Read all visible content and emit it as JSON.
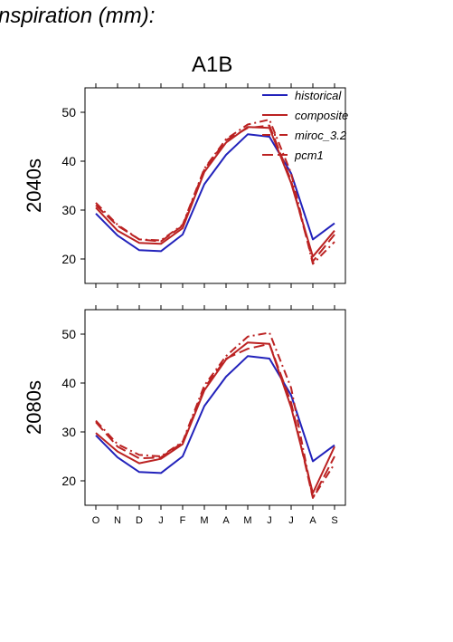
{
  "figure": {
    "title": "nspiration (mm):",
    "scenario": "A1B"
  },
  "colors": {
    "historical": "#2222bb",
    "future": "#bb2222",
    "axis": "#000000"
  },
  "chart_data": [
    {
      "type": "line",
      "row_label": "2040s",
      "categories": [
        "O",
        "N",
        "D",
        "J",
        "F",
        "M",
        "A",
        "M",
        "J",
        "J",
        "A",
        "S"
      ],
      "ylim": [
        15,
        55
      ],
      "yticks": [
        20,
        30,
        40,
        50
      ],
      "legend_placement": "top-right",
      "series": [
        {
          "name": "historical",
          "values": [
            29.3,
            24.8,
            21.8,
            21.6,
            25.0,
            35.3,
            41.3,
            45.5,
            45.0,
            37.5,
            24.0,
            27.3
          ]
        },
        {
          "name": "composite",
          "values": [
            30.5,
            25.8,
            23.3,
            23.1,
            26.3,
            37.8,
            43.8,
            47.0,
            46.8,
            35.5,
            20.5,
            25.8
          ]
        },
        {
          "name": "miroc_3.2",
          "values": [
            31.5,
            27.0,
            24.0,
            23.8,
            27.0,
            38.5,
            44.5,
            47.5,
            48.5,
            37.5,
            19.0,
            23.5
          ]
        },
        {
          "name": "pcm1",
          "values": [
            31.0,
            26.8,
            24.0,
            23.6,
            26.8,
            38.3,
            44.3,
            46.8,
            47.3,
            36.0,
            19.5,
            25.0
          ]
        }
      ]
    },
    {
      "type": "line",
      "row_label": "2080s",
      "categories": [
        "O",
        "N",
        "D",
        "J",
        "F",
        "M",
        "A",
        "M",
        "J",
        "J",
        "A",
        "S"
      ],
      "ylim": [
        15,
        55
      ],
      "yticks": [
        20,
        30,
        40,
        50
      ],
      "series": [
        {
          "name": "historical",
          "values": [
            29.3,
            24.8,
            21.8,
            21.6,
            25.0,
            35.3,
            41.3,
            45.5,
            45.0,
            37.5,
            24.0,
            27.3
          ]
        },
        {
          "name": "composite",
          "values": [
            29.8,
            26.0,
            23.6,
            24.5,
            27.5,
            38.5,
            44.8,
            48.3,
            48.0,
            35.0,
            17.5,
            27.0
          ]
        },
        {
          "name": "miroc_3.2",
          "values": [
            32.3,
            27.5,
            25.3,
            25.0,
            28.0,
            39.5,
            45.5,
            49.5,
            50.3,
            39.0,
            16.5,
            23.5
          ]
        },
        {
          "name": "pcm1",
          "values": [
            32.0,
            27.0,
            24.6,
            24.8,
            27.8,
            39.0,
            45.0,
            47.0,
            48.0,
            36.0,
            16.5,
            25.0
          ]
        }
      ]
    }
  ]
}
